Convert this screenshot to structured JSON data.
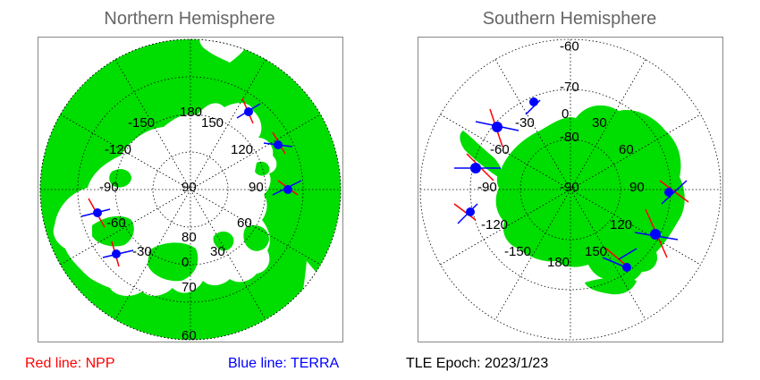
{
  "north": {
    "title": "Northern Hemisphere",
    "lon_labels": [
      "180",
      "150",
      "120",
      "90",
      "60",
      "30",
      "0",
      "-30",
      "-60",
      "-90",
      "-120",
      "-150"
    ],
    "lat_labels": [
      "90",
      "80",
      "70",
      "60"
    ]
  },
  "south": {
    "title": "Southern Hemisphere",
    "lon_labels": [
      "0",
      "30",
      "60",
      "90",
      "120",
      "150",
      "180",
      "-150",
      "-120",
      "-90",
      "-60",
      "-30"
    ],
    "lat_labels": [
      "-60",
      "-70",
      "-80",
      "-90"
    ]
  },
  "legend": {
    "npp": "Red line: NPP",
    "terra": "Blue line: TERRA",
    "epoch": "TLE Epoch: 2023/1/23"
  },
  "colors": {
    "land": "#00dd00",
    "ocean": "#ffffff",
    "npp": "#ff0000",
    "terra": "#0000ff",
    "title": "#666666"
  }
}
